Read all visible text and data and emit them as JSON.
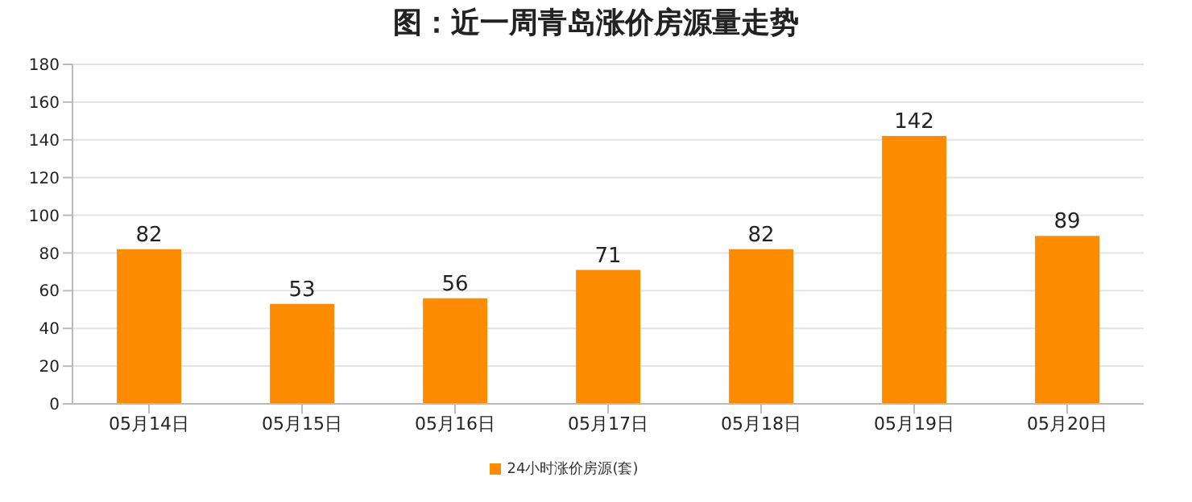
{
  "chart_data": {
    "type": "bar",
    "title": "图：近一周青岛涨价房源量走势",
    "categories": [
      "05月14日",
      "05月15日",
      "05月16日",
      "05月17日",
      "05月18日",
      "05月19日",
      "05月20日"
    ],
    "series": [
      {
        "name": "24小时涨价房源(套)",
        "color": "#ff8c00",
        "values": [
          82,
          53,
          56,
          71,
          82,
          142,
          89
        ]
      }
    ],
    "ylim": [
      0,
      180
    ],
    "yticks": [
      0,
      20,
      40,
      60,
      80,
      100,
      120,
      140,
      160,
      180
    ],
    "grid": "y",
    "legend": "bottom",
    "data_labels": true
  }
}
